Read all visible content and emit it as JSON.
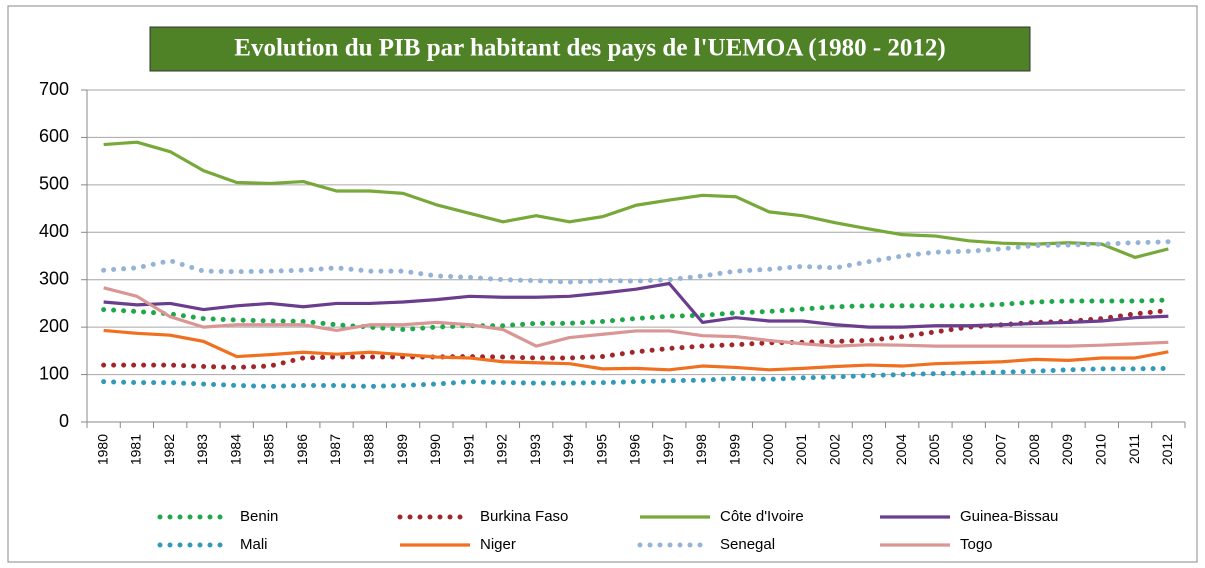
{
  "chart_data": {
    "type": "line",
    "title": "Evolution du PIB par habitant des pays de l'UEMOA (1980 - 2012)",
    "categories": [
      "1980",
      "1981",
      "1982",
      "1983",
      "1984",
      "1985",
      "1986",
      "1987",
      "1988",
      "1989",
      "1990",
      "1991",
      "1992",
      "1993",
      "1994",
      "1995",
      "1996",
      "1997",
      "1998",
      "1999",
      "2000",
      "2001",
      "2002",
      "2003",
      "2004",
      "2005",
      "2006",
      "2007",
      "2008",
      "2009",
      "2010",
      "2011",
      "2012"
    ],
    "ylim": [
      0,
      700
    ],
    "yticks": [
      0,
      100,
      200,
      300,
      400,
      500,
      600,
      700
    ],
    "grid": true,
    "legend": "bottom",
    "series": [
      {
        "name": "Benin",
        "color": "#1fa84a",
        "style": "dotted",
        "values": [
          237,
          233,
          228,
          218,
          215,
          213,
          212,
          205,
          200,
          195,
          200,
          203,
          203,
          208,
          208,
          212,
          218,
          223,
          225,
          230,
          233,
          238,
          243,
          245,
          245,
          245,
          245,
          248,
          253,
          255,
          255,
          255,
          257
        ]
      },
      {
        "name": "Burkina Faso",
        "color": "#a0262a",
        "style": "dotted",
        "values": [
          120,
          120,
          120,
          117,
          115,
          118,
          135,
          137,
          137,
          137,
          137,
          138,
          137,
          135,
          135,
          138,
          148,
          155,
          160,
          163,
          167,
          168,
          170,
          172,
          180,
          190,
          200,
          205,
          210,
          212,
          218,
          228,
          235
        ]
      },
      {
        "name": "Côte d'Ivoire",
        "color": "#77a83a",
        "style": "solid",
        "values": [
          585,
          590,
          570,
          530,
          505,
          503,
          507,
          487,
          487,
          482,
          458,
          440,
          422,
          435,
          422,
          433,
          457,
          468,
          478,
          475,
          443,
          435,
          420,
          407,
          395,
          392,
          382,
          377,
          375,
          378,
          375,
          347,
          365
        ]
      },
      {
        "name": "Guinea-Bissau",
        "color": "#6a3d8f",
        "style": "solid",
        "values": [
          253,
          247,
          250,
          237,
          245,
          250,
          243,
          250,
          250,
          253,
          258,
          265,
          263,
          263,
          265,
          272,
          280,
          292,
          210,
          220,
          213,
          213,
          205,
          200,
          200,
          203,
          203,
          205,
          208,
          210,
          213,
          220,
          223
        ]
      },
      {
        "name": "Mali",
        "color": "#3399b8",
        "style": "dotted",
        "values": [
          85,
          83,
          83,
          80,
          77,
          75,
          77,
          77,
          75,
          77,
          80,
          85,
          83,
          82,
          82,
          83,
          85,
          87,
          88,
          92,
          90,
          93,
          95,
          98,
          100,
          102,
          103,
          105,
          107,
          110,
          112,
          112,
          113
        ]
      },
      {
        "name": "Niger",
        "color": "#f07020",
        "style": "solid",
        "values": [
          193,
          187,
          183,
          170,
          138,
          142,
          147,
          143,
          147,
          142,
          137,
          135,
          127,
          125,
          123,
          112,
          113,
          110,
          118,
          115,
          110,
          113,
          117,
          120,
          118,
          123,
          125,
          127,
          132,
          130,
          135,
          135,
          148
        ]
      },
      {
        "name": "Senegal",
        "color": "#95b3d7",
        "style": "dotted",
        "values": [
          320,
          325,
          340,
          318,
          317,
          318,
          320,
          325,
          318,
          318,
          308,
          305,
          300,
          298,
          295,
          298,
          297,
          300,
          308,
          318,
          322,
          328,
          325,
          338,
          350,
          358,
          360,
          365,
          372,
          373,
          375,
          378,
          380
        ]
      },
      {
        "name": "Togo",
        "color": "#d99694",
        "style": "solid",
        "values": [
          283,
          265,
          222,
          200,
          205,
          205,
          205,
          193,
          205,
          205,
          210,
          205,
          195,
          160,
          178,
          185,
          192,
          192,
          182,
          180,
          172,
          165,
          160,
          163,
          162,
          160,
          160,
          160,
          160,
          160,
          162,
          165,
          168
        ]
      }
    ]
  }
}
